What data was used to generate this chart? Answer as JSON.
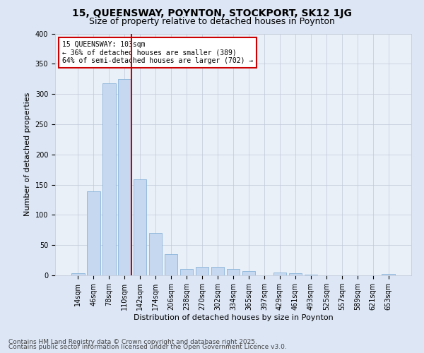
{
  "title": "15, QUEENSWAY, POYNTON, STOCKPORT, SK12 1JG",
  "subtitle": "Size of property relative to detached houses in Poynton",
  "xlabel": "Distribution of detached houses by size in Poynton",
  "ylabel": "Number of detached properties",
  "categories": [
    "14sqm",
    "46sqm",
    "78sqm",
    "110sqm",
    "142sqm",
    "174sqm",
    "206sqm",
    "238sqm",
    "270sqm",
    "302sqm",
    "334sqm",
    "365sqm",
    "397sqm",
    "429sqm",
    "461sqm",
    "493sqm",
    "525sqm",
    "557sqm",
    "589sqm",
    "621sqm",
    "653sqm"
  ],
  "values": [
    4,
    139,
    318,
    325,
    159,
    70,
    35,
    11,
    14,
    14,
    10,
    7,
    0,
    5,
    3,
    1,
    0,
    0,
    0,
    0,
    2
  ],
  "bar_color": "#c5d8f0",
  "bar_edge_color": "#7baad4",
  "vline_x": 3.43,
  "annotation_title": "15 QUEENSWAY: 103sqm",
  "annotation_line1": "← 36% of detached houses are smaller (389)",
  "annotation_line2": "64% of semi-detached houses are larger (702) →",
  "annotation_box_color": "#ffffff",
  "annotation_box_edge": "#cc0000",
  "annotation_text_color": "#000000",
  "vline_color": "#cc0000",
  "ylim": [
    0,
    400
  ],
  "yticks": [
    0,
    50,
    100,
    150,
    200,
    250,
    300,
    350,
    400
  ],
  "grid_color": "#c0c9d8",
  "bg_color": "#dce6f5",
  "plot_bg_color": "#eaf0f8",
  "footer1": "Contains HM Land Registry data © Crown copyright and database right 2025.",
  "footer2": "Contains public sector information licensed under the Open Government Licence v3.0.",
  "title_fontsize": 10,
  "subtitle_fontsize": 9,
  "axis_label_fontsize": 8,
  "tick_fontsize": 7,
  "annotation_fontsize": 7,
  "footer_fontsize": 6.5
}
